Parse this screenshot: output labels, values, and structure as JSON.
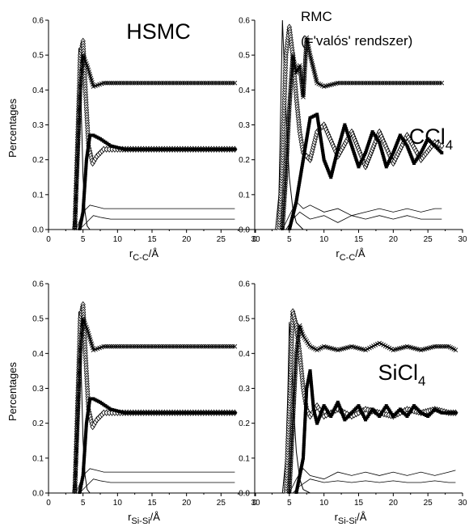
{
  "colors": {
    "axis": "#000000",
    "series": "#000000",
    "background": "#ffffff"
  },
  "chart_data": [
    {
      "type": "line",
      "panel": "top-left",
      "xlabel": "r",
      "xlabel_sub": "C-C",
      "xlabel_suffix": "/Å",
      "ylabel": "Percentages",
      "annotation": "HSMC",
      "annotation_line2": "",
      "compound": "CCl",
      "compound_sub": "4",
      "xlim": [
        0,
        30
      ],
      "ylim": [
        0,
        0.6
      ],
      "xticks": [
        "0",
        "5",
        "10",
        "15",
        "20",
        "25",
        "30"
      ],
      "yticks": [
        "0.0",
        "0.1",
        "0.2",
        "0.3",
        "0.4",
        "0.5",
        "0.6"
      ],
      "style": "hsmc",
      "xmax": 27,
      "series": [
        {
          "marker": "line",
          "x": [
            3.5,
            4.0,
            4.2,
            4.4,
            4.6,
            4.8,
            5.0,
            5.3,
            5.6,
            6,
            8,
            27
          ],
          "y": [
            0,
            0.1,
            0.3,
            0.52,
            0.45,
            0.3,
            0.15,
            0.05,
            0.01,
            0,
            0,
            0
          ]
        },
        {
          "marker": "diamond",
          "x": [
            3.8,
            4.2,
            4.6,
            5.0,
            5.4,
            5.8,
            6.4,
            7,
            8,
            10,
            27
          ],
          "y": [
            0.0,
            0.25,
            0.5,
            0.54,
            0.38,
            0.24,
            0.19,
            0.21,
            0.23,
            0.23,
            0.23
          ]
        },
        {
          "marker": "x",
          "x": [
            3.8,
            4.2,
            4.6,
            5.0,
            5.6,
            6.5,
            8,
            10,
            27
          ],
          "y": [
            0.0,
            0.2,
            0.4,
            0.5,
            0.47,
            0.41,
            0.42,
            0.42,
            0.42
          ]
        },
        {
          "marker": "square",
          "x": [
            4.5,
            5.0,
            5.5,
            6.0,
            6.5,
            7.5,
            9,
            11,
            27
          ],
          "y": [
            0.0,
            0.05,
            0.2,
            0.27,
            0.27,
            0.26,
            0.24,
            0.23,
            0.23
          ]
        },
        {
          "marker": "thin",
          "x": [
            4,
            5,
            6,
            7,
            8,
            10,
            27
          ],
          "y": [
            0,
            0.05,
            0.07,
            0.065,
            0.06,
            0.06,
            0.06
          ]
        },
        {
          "marker": "thin",
          "x": [
            4.5,
            5.5,
            6.5,
            7.5,
            9,
            11,
            27
          ],
          "y": [
            0,
            0.02,
            0.04,
            0.035,
            0.03,
            0.03,
            0.03
          ]
        }
      ]
    },
    {
      "type": "line",
      "panel": "top-right",
      "xlabel": "r",
      "xlabel_sub": "C-C",
      "xlabel_suffix": "/Å",
      "ylabel": "",
      "annotation": "RMC",
      "annotation_line2": "(='valós' rendszer)",
      "compound": "CCl",
      "compound_sub": "4",
      "xlim": [
        0,
        30
      ],
      "ylim": [
        0,
        0.6
      ],
      "xticks": [
        "0",
        "5",
        "10",
        "15",
        "20",
        "25",
        "30"
      ],
      "yticks": [
        "0.0",
        "0.1",
        "0.2",
        "0.3",
        "0.4",
        "0.5",
        "0.6"
      ],
      "style": "rmc",
      "xmax": 27,
      "series": [
        {
          "marker": "line",
          "x": [
            3,
            3.5,
            3.8,
            4.0,
            4.3,
            4.6,
            5.0,
            5.5,
            6,
            7,
            8,
            27
          ],
          "y": [
            0,
            0.1,
            0.4,
            0.6,
            0.45,
            0.3,
            0.15,
            0.06,
            0.02,
            0,
            0,
            0
          ]
        },
        {
          "marker": "diamond",
          "x": [
            3.5,
            4,
            4.5,
            5,
            5.5,
            6,
            6.5,
            7,
            8,
            9,
            10,
            12,
            14,
            16,
            18,
            20,
            22,
            24,
            26,
            27
          ],
          "y": [
            0,
            0.2,
            0.5,
            0.58,
            0.5,
            0.38,
            0.28,
            0.22,
            0.2,
            0.28,
            0.3,
            0.21,
            0.28,
            0.18,
            0.28,
            0.19,
            0.27,
            0.2,
            0.25,
            0.24
          ]
        },
        {
          "marker": "x",
          "x": [
            4,
            4.5,
            5,
            5.5,
            6,
            6.5,
            7,
            7.5,
            8,
            9,
            10,
            12,
            27
          ],
          "y": [
            0,
            0.15,
            0.35,
            0.5,
            0.45,
            0.47,
            0.38,
            0.55,
            0.5,
            0.42,
            0.41,
            0.42,
            0.42
          ]
        },
        {
          "marker": "square",
          "x": [
            5,
            6,
            7,
            8,
            9,
            10,
            11,
            12,
            13,
            14,
            15,
            16,
            17,
            18,
            19,
            20,
            21,
            22,
            23,
            24,
            25,
            26,
            27
          ],
          "y": [
            0,
            0.08,
            0.2,
            0.32,
            0.33,
            0.2,
            0.15,
            0.23,
            0.3,
            0.24,
            0.18,
            0.22,
            0.28,
            0.25,
            0.18,
            0.22,
            0.27,
            0.24,
            0.19,
            0.22,
            0.26,
            0.24,
            0.22
          ]
        },
        {
          "marker": "thin",
          "x": [
            4,
            5,
            6,
            7,
            8,
            10,
            12,
            14,
            16,
            18,
            20,
            22,
            24,
            26,
            27
          ],
          "y": [
            0,
            0.04,
            0.08,
            0.06,
            0.07,
            0.05,
            0.06,
            0.04,
            0.05,
            0.06,
            0.05,
            0.06,
            0.05,
            0.06,
            0.06
          ]
        },
        {
          "marker": "thin",
          "x": [
            4.5,
            5.5,
            6.5,
            8,
            10,
            12,
            14,
            16,
            18,
            20,
            22,
            24,
            26,
            27
          ],
          "y": [
            0,
            0.03,
            0.05,
            0.03,
            0.04,
            0.02,
            0.04,
            0.03,
            0.04,
            0.03,
            0.04,
            0.03,
            0.03,
            0.03
          ]
        }
      ]
    },
    {
      "type": "line",
      "panel": "bottom-left",
      "xlabel": "r",
      "xlabel_sub": "Si-Si",
      "xlabel_suffix": "/Å",
      "ylabel": "Percentages",
      "annotation": "",
      "annotation_line2": "",
      "compound": "SiCl",
      "compound_sub": "4",
      "xlim": [
        0,
        30
      ],
      "ylim": [
        0,
        0.6
      ],
      "xticks": [
        "0",
        "5",
        "10",
        "15",
        "20",
        "25",
        "30"
      ],
      "yticks": [
        "0.0",
        "0.1",
        "0.2",
        "0.3",
        "0.4",
        "0.5",
        "0.6"
      ],
      "style": "hsmc",
      "xmax": 27,
      "series": [
        {
          "marker": "line",
          "x": [
            3.5,
            4.0,
            4.2,
            4.4,
            4.6,
            4.8,
            5.0,
            5.3,
            5.6,
            6,
            8,
            27
          ],
          "y": [
            0,
            0.1,
            0.3,
            0.52,
            0.45,
            0.3,
            0.15,
            0.05,
            0.01,
            0,
            0,
            0
          ]
        },
        {
          "marker": "diamond",
          "x": [
            3.8,
            4.2,
            4.6,
            5.0,
            5.4,
            5.8,
            6.4,
            7,
            8,
            10,
            27
          ],
          "y": [
            0.0,
            0.25,
            0.5,
            0.54,
            0.38,
            0.24,
            0.19,
            0.21,
            0.23,
            0.23,
            0.23
          ]
        },
        {
          "marker": "x",
          "x": [
            3.8,
            4.2,
            4.6,
            5.0,
            5.6,
            6.5,
            8,
            10,
            27
          ],
          "y": [
            0.0,
            0.2,
            0.4,
            0.5,
            0.47,
            0.41,
            0.42,
            0.42,
            0.42
          ]
        },
        {
          "marker": "square",
          "x": [
            4.5,
            5.0,
            5.5,
            6.0,
            6.5,
            7.5,
            9,
            11,
            27
          ],
          "y": [
            0.0,
            0.05,
            0.2,
            0.27,
            0.27,
            0.26,
            0.24,
            0.23,
            0.23
          ]
        },
        {
          "marker": "thin",
          "x": [
            4,
            5,
            6,
            7,
            8,
            10,
            27
          ],
          "y": [
            0,
            0.05,
            0.07,
            0.065,
            0.06,
            0.06,
            0.06
          ]
        },
        {
          "marker": "thin",
          "x": [
            4.5,
            5.5,
            6.5,
            7.5,
            9,
            11,
            27
          ],
          "y": [
            0,
            0.02,
            0.04,
            0.035,
            0.03,
            0.03,
            0.03
          ]
        }
      ]
    },
    {
      "type": "line",
      "panel": "bottom-right",
      "xlabel": "r",
      "xlabel_sub": "Si-Si",
      "xlabel_suffix": "/Å",
      "ylabel": "",
      "annotation": "",
      "annotation_line2": "",
      "compound": "",
      "compound_sub": "",
      "xlim": [
        0,
        30
      ],
      "ylim": [
        0,
        0.6
      ],
      "xticks": [
        "0",
        "5",
        "10",
        "15",
        "20",
        "25",
        "30"
      ],
      "yticks": [
        "0.0",
        "0.1",
        "0.2",
        "0.3",
        "0.4",
        "0.5",
        "0.6"
      ],
      "style": "rmc",
      "xmax": 29,
      "series": [
        {
          "marker": "line",
          "x": [
            4,
            4.5,
            4.8,
            5.0,
            5.3,
            5.6,
            6,
            6.5,
            7,
            8,
            29
          ],
          "y": [
            0,
            0.1,
            0.3,
            0.49,
            0.4,
            0.25,
            0.12,
            0.04,
            0.01,
            0,
            0
          ]
        },
        {
          "marker": "diamond",
          "x": [
            4.5,
            5,
            5.5,
            6,
            6.5,
            7,
            7.5,
            8,
            9,
            10,
            12,
            14,
            16,
            18,
            20,
            22,
            24,
            26,
            28,
            29
          ],
          "y": [
            0,
            0.25,
            0.52,
            0.48,
            0.4,
            0.3,
            0.24,
            0.22,
            0.25,
            0.22,
            0.24,
            0.22,
            0.24,
            0.23,
            0.22,
            0.24,
            0.23,
            0.24,
            0.23,
            0.23
          ]
        },
        {
          "marker": "x",
          "x": [
            5,
            5.5,
            6,
            6.5,
            7,
            8,
            9,
            10,
            12,
            14,
            16,
            18,
            20,
            22,
            24,
            26,
            28,
            29
          ],
          "y": [
            0,
            0.2,
            0.4,
            0.48,
            0.45,
            0.42,
            0.41,
            0.42,
            0.41,
            0.42,
            0.41,
            0.43,
            0.41,
            0.42,
            0.41,
            0.42,
            0.42,
            0.41
          ]
        },
        {
          "marker": "square",
          "x": [
            6,
            7,
            7.5,
            8,
            8.5,
            9,
            10,
            11,
            12,
            13,
            14,
            15,
            16,
            17,
            18,
            19,
            20,
            21,
            22,
            23,
            24,
            25,
            26,
            27,
            28,
            29
          ],
          "y": [
            0,
            0.1,
            0.3,
            0.35,
            0.24,
            0.2,
            0.25,
            0.22,
            0.26,
            0.21,
            0.23,
            0.25,
            0.21,
            0.24,
            0.22,
            0.25,
            0.22,
            0.24,
            0.22,
            0.25,
            0.23,
            0.22,
            0.24,
            0.23,
            0.23,
            0.23
          ]
        },
        {
          "marker": "thin",
          "x": [
            5,
            6,
            7,
            8,
            10,
            12,
            14,
            16,
            18,
            20,
            22,
            24,
            26,
            28,
            29
          ],
          "y": [
            0,
            0.04,
            0.07,
            0.05,
            0.04,
            0.06,
            0.05,
            0.06,
            0.05,
            0.06,
            0.05,
            0.06,
            0.05,
            0.06,
            0.065
          ]
        },
        {
          "marker": "thin",
          "x": [
            5.5,
            6.5,
            8,
            10,
            12,
            14,
            16,
            18,
            20,
            22,
            24,
            26,
            28,
            29
          ],
          "y": [
            0,
            0.02,
            0.04,
            0.03,
            0.035,
            0.03,
            0.035,
            0.03,
            0.035,
            0.03,
            0.03,
            0.035,
            0.03,
            0.03
          ]
        }
      ]
    }
  ]
}
